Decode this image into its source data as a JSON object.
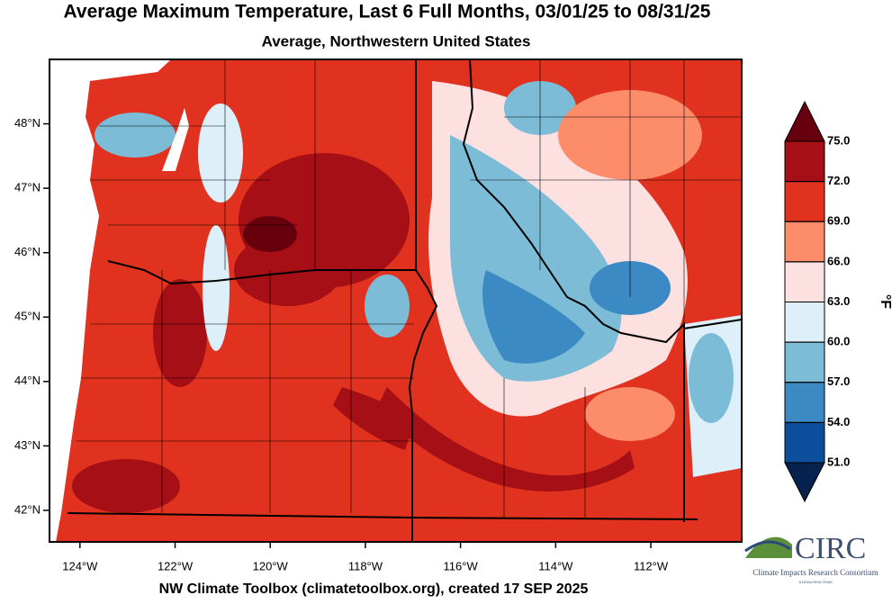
{
  "title": "Average Maximum Temperature, Last 6 Full Months, 03/01/25 to 08/31/25",
  "subtitle": "Average, Northwestern United States",
  "map": {
    "xlim": [
      -124.64,
      -110.09
    ],
    "ylim": [
      41.51,
      49.0
    ],
    "xticks": [
      {
        "value": -124,
        "label": "124°W"
      },
      {
        "value": -122,
        "label": "122°W"
      },
      {
        "value": -120,
        "label": "120°W"
      },
      {
        "value": -118,
        "label": "118°W"
      },
      {
        "value": -116,
        "label": "116°W"
      },
      {
        "value": -114,
        "label": "114°W"
      },
      {
        "value": -112,
        "label": "112°W"
      }
    ],
    "yticks": [
      {
        "value": 48,
        "label": "48°N"
      },
      {
        "value": 47,
        "label": "47°N"
      },
      {
        "value": 46,
        "label": "46°N"
      },
      {
        "value": 45,
        "label": "45°N"
      },
      {
        "value": 44,
        "label": "44°N"
      },
      {
        "value": 43,
        "label": "43°N"
      },
      {
        "value": 42,
        "label": "42°N"
      }
    ]
  },
  "colorbar": {
    "lim": [
      51,
      75
    ],
    "ticks": [
      {
        "value": 75,
        "label": "75.0"
      },
      {
        "value": 72,
        "label": "72.0"
      },
      {
        "value": 69,
        "label": "69.0"
      },
      {
        "value": 66,
        "label": "66.0"
      },
      {
        "value": 63,
        "label": "63.0"
      },
      {
        "value": 60,
        "label": "60.0"
      },
      {
        "value": 57,
        "label": "57.0"
      },
      {
        "value": 54,
        "label": "54.0"
      },
      {
        "value": 51,
        "label": "51.0"
      }
    ],
    "over_color": "#67000d",
    "colors": [
      "#a50f15",
      "#e0321f",
      "#fc8c6a",
      "#fde0e0",
      "#ddf0fa",
      "#7cbcd6",
      "#3b8ac4",
      "#0b4f9c"
    ],
    "under_color": "#08224f",
    "unit": "°F"
  },
  "footer": "NW Climate Toolbox (climatetoolbox.org), created 17 SEP 2025",
  "logo": {
    "name": "CIRC",
    "full_name": "Climate Impacts Research Consortium",
    "tagline": "A NOAA RISA TEAM"
  }
}
